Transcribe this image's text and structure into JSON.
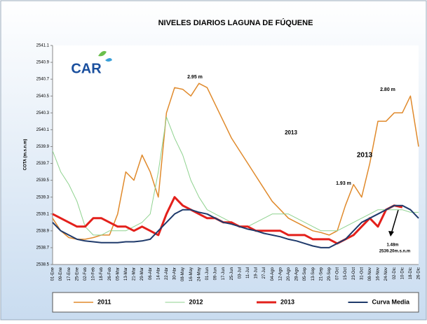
{
  "chart_data": {
    "type": "line",
    "title": "NIVELES DIARIOS LAGUNA DE FÚQUENE",
    "logo": "CAR",
    "ylabel": "COTA (m.s.n.m)",
    "categories": [
      "01-Ene",
      "09-Ene",
      "17-Ene",
      "25-Ene",
      "02-Feb",
      "10-Feb",
      "18-Feb",
      "26-Feb",
      "05-Mar",
      "13-Mar",
      "21-Mar",
      "29-Mar",
      "06-Abr",
      "14-Abr",
      "22-Abr",
      "30-Abr",
      "08-May",
      "16-May",
      "24-May",
      "01-Jun",
      "09-Jun",
      "17-Jun",
      "25-Jun",
      "03-Jul",
      "11-Jul",
      "19-Jul",
      "27-Jul",
      "04-Ago",
      "12-Ago",
      "20-Ago",
      "28-Ago",
      "05-Sep",
      "13-Sep",
      "21-Sep",
      "29-Sep",
      "07-Oct",
      "15-Oct",
      "23-Oct",
      "31-Oct",
      "08-Nov",
      "16-Nov",
      "24-Nov",
      "02-Dic",
      "10-Dic",
      "18-Dic",
      "26-Dic"
    ],
    "series": [
      {
        "name": "2011",
        "color": "#e08a2c",
        "width": 1.5,
        "values": [
          2539.05,
          2538.9,
          2538.82,
          2538.8,
          2538.8,
          2538.82,
          2538.85,
          2538.85,
          2539.1,
          2539.6,
          2539.5,
          2539.8,
          2539.6,
          2539.3,
          2540.3,
          2540.6,
          2540.58,
          2540.5,
          2540.65,
          2540.6,
          2540.4,
          2540.2,
          2540.0,
          2539.85,
          2539.7,
          2539.55,
          2539.4,
          2539.25,
          2539.15,
          2539.05,
          2539.0,
          2538.95,
          2538.9,
          2538.88,
          2538.85,
          2538.9,
          2539.2,
          2539.45,
          2539.3,
          2539.7,
          2540.2,
          2540.2,
          2540.3,
          2540.3,
          2540.5,
          2539.9
        ]
      },
      {
        "name": "2012",
        "color": "#8fd28f",
        "width": 1,
        "values": [
          2539.85,
          2539.6,
          2539.45,
          2539.25,
          2538.95,
          2538.85,
          2538.85,
          2538.9,
          2538.9,
          2538.9,
          2538.95,
          2539.0,
          2539.1,
          2539.6,
          2540.25,
          2540.0,
          2539.8,
          2539.5,
          2539.3,
          2539.15,
          2539.1,
          2539.05,
          2539.0,
          2538.95,
          2538.95,
          2539.0,
          2539.05,
          2539.1,
          2539.1,
          2539.1,
          2539.05,
          2539.0,
          2538.95,
          2538.9,
          2538.9,
          2538.9,
          2538.95,
          2539.0,
          2539.05,
          2539.1,
          2539.15,
          2539.15,
          2539.15,
          2539.15,
          2539.12,
          2539.12
        ]
      },
      {
        "name": "2013",
        "color": "#e3201b",
        "width": 3,
        "values": [
          2539.1,
          2539.05,
          2539.0,
          2538.95,
          2538.95,
          2539.05,
          2539.05,
          2539.0,
          2538.95,
          2538.95,
          2538.9,
          2538.95,
          2538.9,
          2538.85,
          2539.1,
          2539.3,
          2539.2,
          2539.15,
          2539.1,
          2539.05,
          2539.05,
          2539.0,
          2539.0,
          2538.95,
          2538.95,
          2538.9,
          2538.9,
          2538.9,
          2538.9,
          2538.85,
          2538.85,
          2538.85,
          2538.8,
          2538.8,
          2538.8,
          2538.75,
          2538.8,
          2538.85,
          2538.95,
          2539.05,
          2538.95,
          2539.15,
          2539.2,
          2539.18,
          null,
          null
        ]
      },
      {
        "name": "Curva Media",
        "color": "#1f3a6b",
        "width": 2,
        "values": [
          2539.0,
          2538.9,
          2538.85,
          2538.8,
          2538.78,
          2538.77,
          2538.76,
          2538.76,
          2538.76,
          2538.77,
          2538.77,
          2538.78,
          2538.8,
          2538.9,
          2539.0,
          2539.1,
          2539.15,
          2539.15,
          2539.12,
          2539.1,
          2539.05,
          2539.0,
          2538.98,
          2538.95,
          2538.92,
          2538.9,
          2538.87,
          2538.85,
          2538.83,
          2538.8,
          2538.78,
          2538.75,
          2538.72,
          2538.7,
          2538.7,
          2538.75,
          2538.8,
          2538.9,
          2539.0,
          2539.05,
          2539.1,
          2539.15,
          2539.2,
          2539.2,
          2539.15,
          2539.05
        ]
      }
    ],
    "ylim": [
      2538.5,
      2541.1
    ],
    "yticks": [
      2538.5,
      2538.7,
      2538.9,
      2539.1,
      2539.3,
      2539.5,
      2539.7,
      2539.9,
      2540.1,
      2540.3,
      2540.5,
      2540.7,
      2540.9,
      2541.1
    ],
    "annotations": [
      "2.95 m",
      "2.80 m",
      "2013",
      "2013",
      "1.93 m",
      "1.48m",
      "2539.20m.s.n.m"
    ]
  }
}
